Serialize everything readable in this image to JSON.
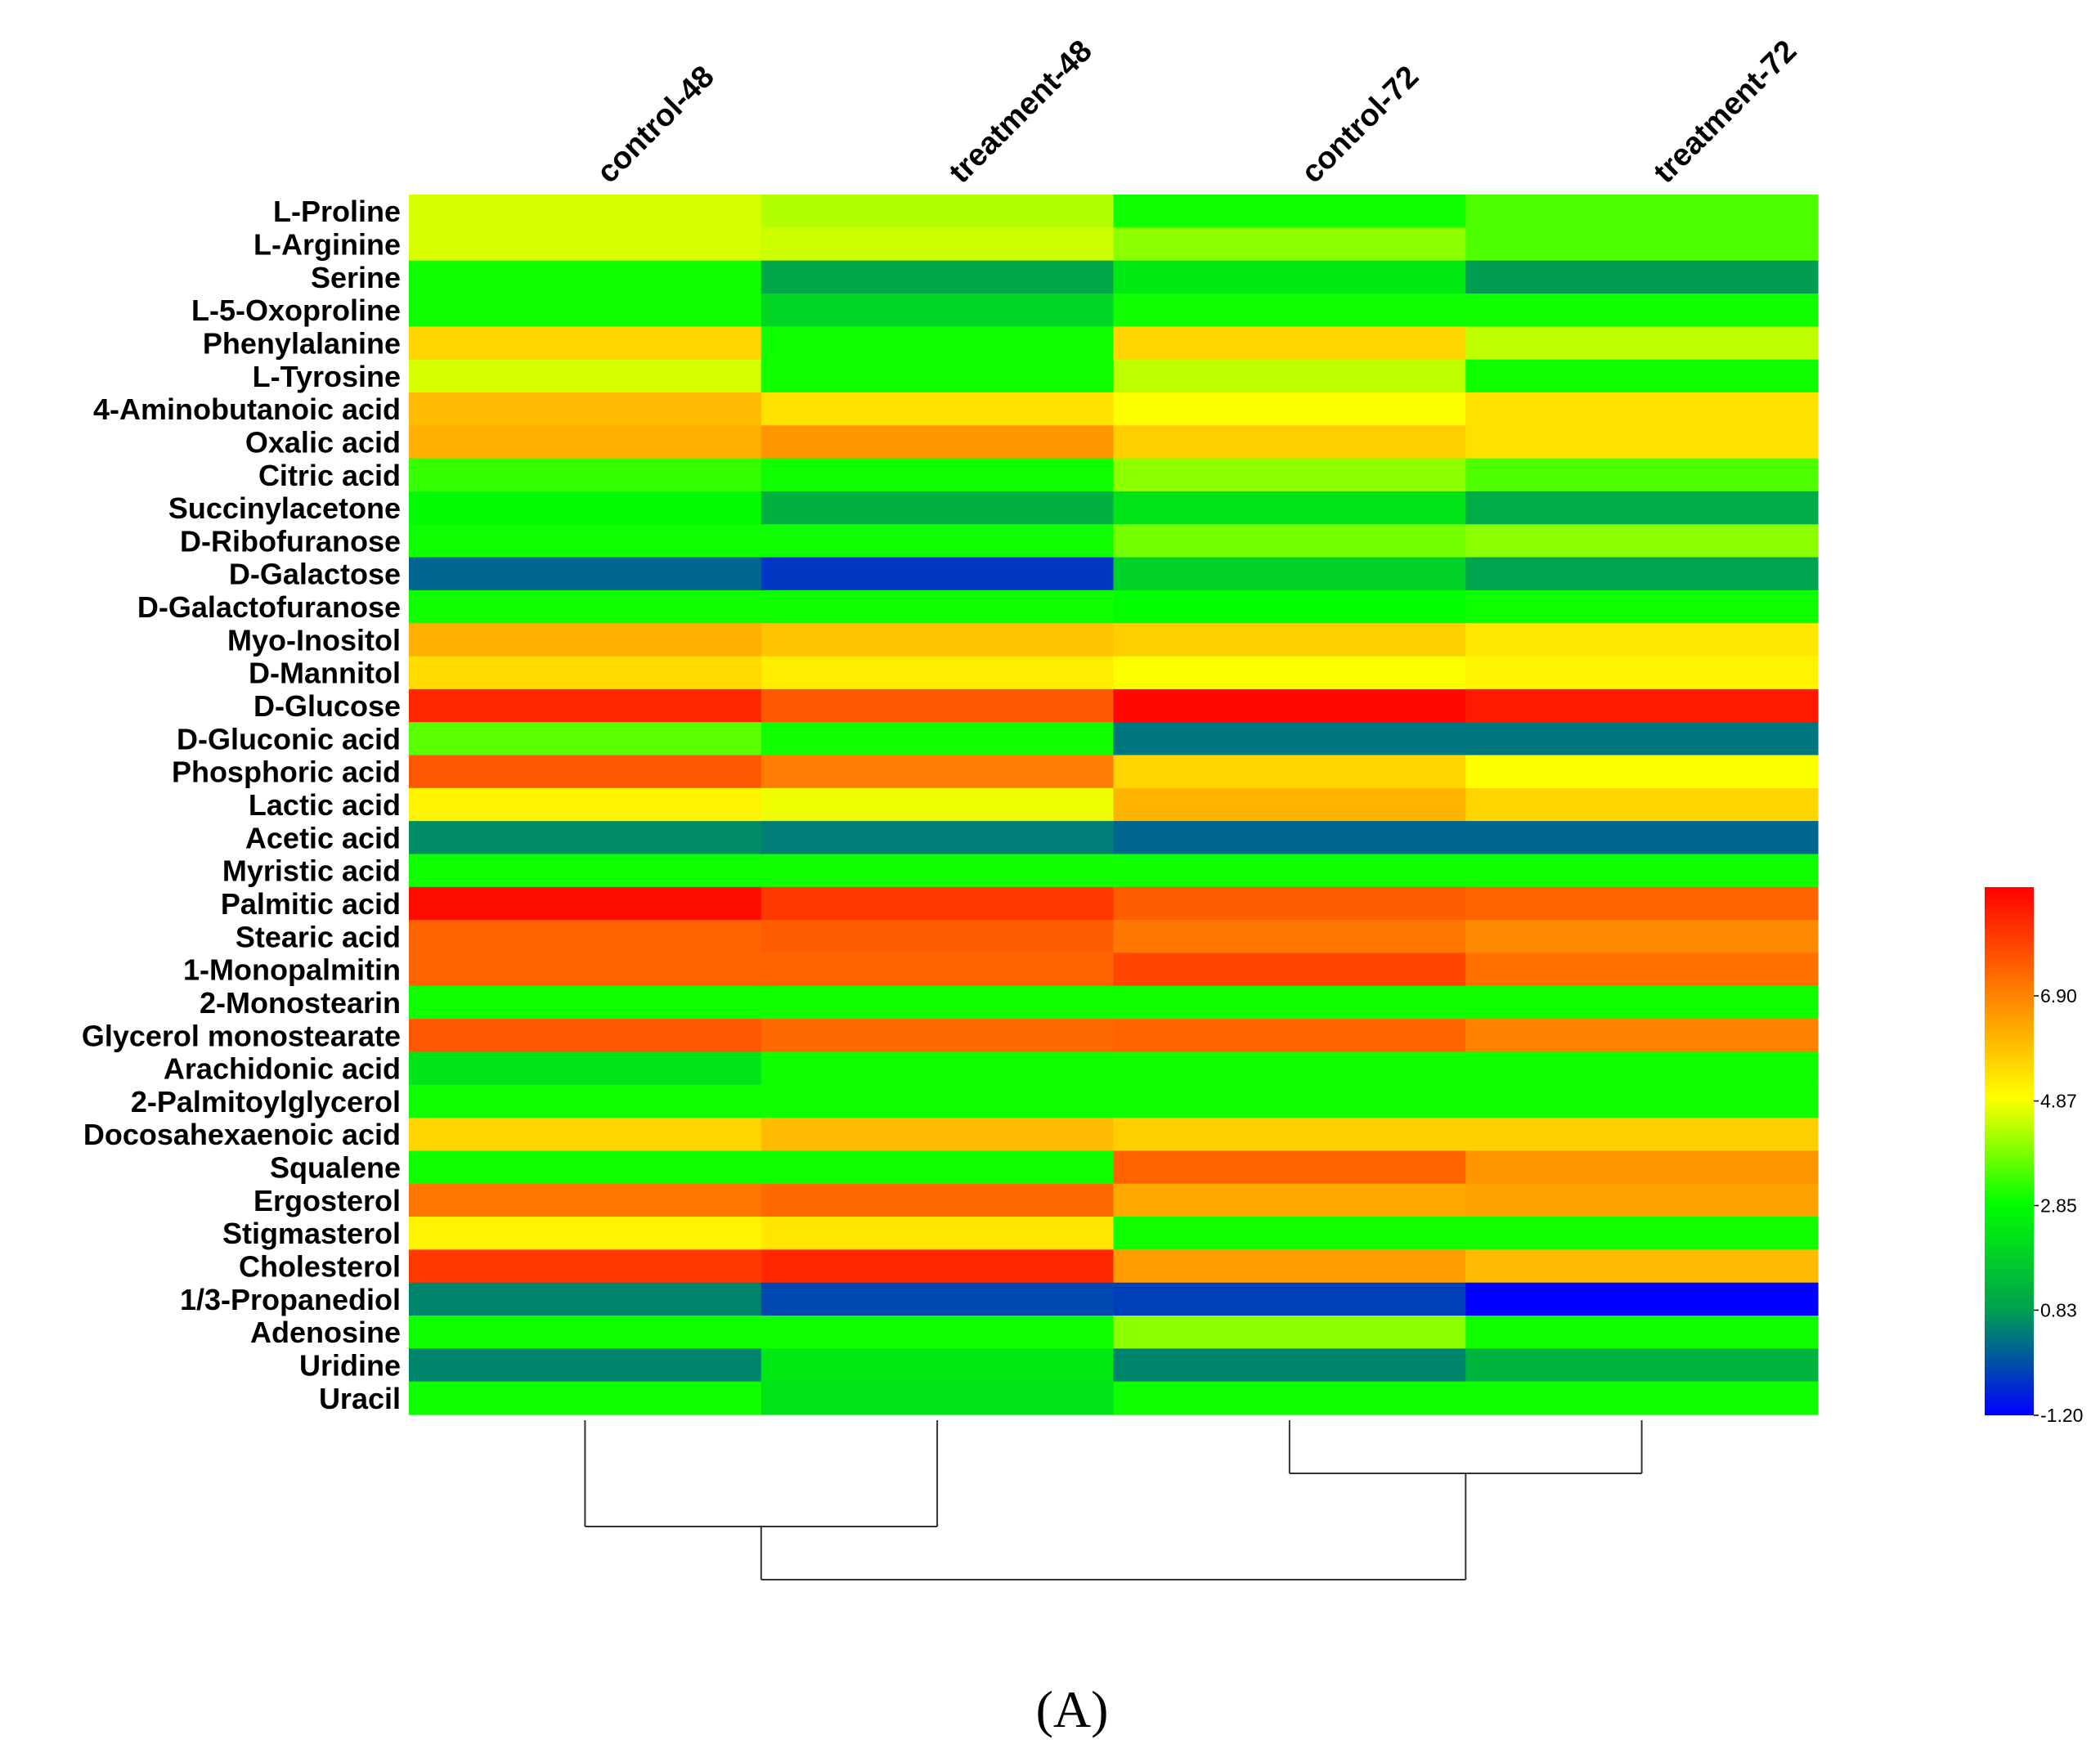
{
  "chart_data": {
    "type": "heatmap",
    "title": "",
    "panel_label": "(A)",
    "columns": [
      "control-48",
      "treatment-48",
      "control-72",
      "treatment-72"
    ],
    "rows": [
      "L-Proline",
      "L-Arginine",
      "Serine",
      "L-5-Oxoproline",
      "Phenylalanine",
      "L-Tyrosine",
      "4-Aminobutanoic acid",
      "Oxalic acid",
      "Citric acid",
      "Succinylacetone",
      "D-Ribofuranose",
      "D-Galactose",
      "D-Galactofuranose",
      "Myo-Inositol",
      "D-Mannitol",
      "D-Glucose",
      "D-Gluconic acid",
      "Phosphoric acid",
      "Lactic acid",
      "Acetic acid",
      "Myristic acid",
      "Palmitic acid",
      "Stearic acid",
      "1-Monopalmitin",
      "2-Monostearin",
      "Glycerol monostearate",
      "Arachidonic acid",
      "2-Palmitoylglycerol",
      "Docosahexaenoic acid",
      "Squalene",
      "Ergosterol",
      "Stigmasterol",
      "Cholesterol",
      "1/3-Propanediol",
      "Adenosine",
      "Uridine",
      "Uracil"
    ],
    "values": [
      [
        4.6,
        4.3,
        3.0,
        3.5
      ],
      [
        4.6,
        4.5,
        4.0,
        3.5
      ],
      [
        3.0,
        1.0,
        2.4,
        0.8
      ],
      [
        3.0,
        2.0,
        3.0,
        3.0
      ],
      [
        5.6,
        3.0,
        5.6,
        4.4
      ],
      [
        4.6,
        3.0,
        4.4,
        3.0
      ],
      [
        6.0,
        5.4,
        4.9,
        5.4
      ],
      [
        6.2,
        6.6,
        5.7,
        5.4
      ],
      [
        3.3,
        3.0,
        4.0,
        3.5
      ],
      [
        2.8,
        1.2,
        2.3,
        1.1
      ],
      [
        3.0,
        3.0,
        3.8,
        4.0
      ],
      [
        0.1,
        -0.5,
        1.9,
        0.9
      ],
      [
        3.0,
        3.0,
        2.9,
        3.0
      ],
      [
        6.2,
        5.9,
        5.7,
        5.3
      ],
      [
        5.5,
        5.2,
        4.9,
        5.1
      ],
      [
        8.4,
        7.6,
        8.9,
        8.6
      ],
      [
        3.6,
        3.0,
        0.3,
        0.3
      ],
      [
        7.6,
        7.0,
        5.6,
        4.9
      ],
      [
        5.1,
        4.8,
        6.1,
        5.6
      ],
      [
        0.6,
        0.4,
        0.1,
        0.1
      ],
      [
        3.0,
        3.0,
        3.0,
        3.0
      ],
      [
        8.8,
        8.1,
        7.5,
        7.4
      ],
      [
        7.4,
        7.5,
        7.1,
        6.8
      ],
      [
        7.4,
        7.4,
        7.9,
        7.2
      ],
      [
        3.0,
        3.0,
        3.0,
        3.0
      ],
      [
        7.6,
        7.3,
        7.4,
        6.9
      ],
      [
        2.3,
        3.0,
        3.0,
        3.0
      ],
      [
        3.0,
        3.0,
        3.0,
        3.0
      ],
      [
        5.6,
        6.0,
        5.7,
        5.7
      ],
      [
        3.0,
        3.0,
        7.4,
        6.6
      ],
      [
        7.1,
        7.3,
        6.3,
        6.4
      ],
      [
        5.1,
        5.3,
        3.0,
        3.0
      ],
      [
        8.1,
        8.4,
        6.5,
        6.0
      ],
      [
        0.5,
        -0.3,
        -0.4,
        -1.2
      ],
      [
        3.0,
        3.0,
        4.0,
        3.0
      ],
      [
        0.5,
        2.4,
        0.5,
        1.3
      ],
      [
        3.0,
        2.3,
        3.0,
        3.0
      ]
    ],
    "colorbar": {
      "range": [
        -1.2,
        9.0
      ],
      "ticks": [
        -1.2,
        0.83,
        2.85,
        4.87,
        6.9
      ],
      "tick_labels": [
        "-1.20",
        "0.83",
        "2.85",
        "4.87",
        "6.90"
      ],
      "colors": [
        "#0000ff",
        "#00a050",
        "#00ff00",
        "#ffff00",
        "#ff0000"
      ]
    },
    "dendrogram": {
      "side": "bottom",
      "merges": [
        {
          "left": "control-72",
          "right": "treatment-72",
          "height": 1.0
        },
        {
          "left": "control-48",
          "right": "treatment-48",
          "height": 2.0
        },
        {
          "left": "cluster-72",
          "right": "cluster-48",
          "height": 3.0
        }
      ]
    }
  }
}
